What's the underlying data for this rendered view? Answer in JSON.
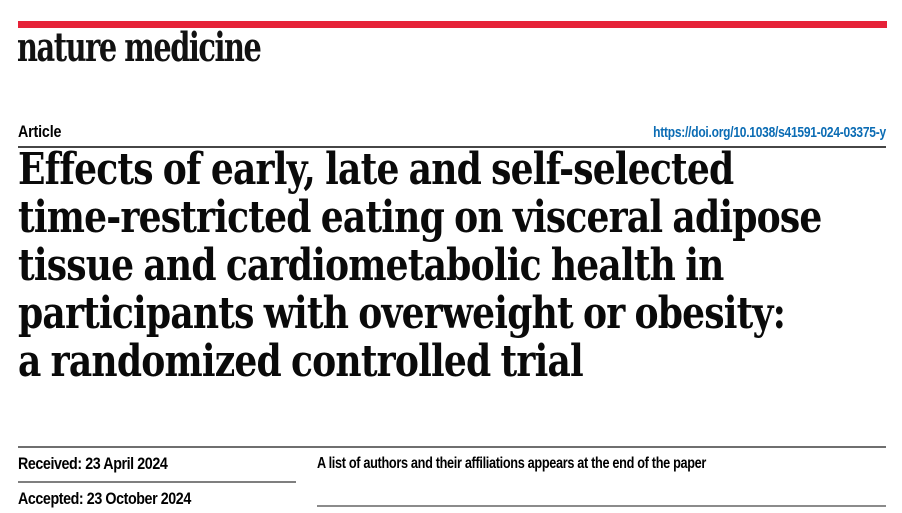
{
  "masthead": {
    "logo": "nature medicine"
  },
  "article_header": {
    "label": "Article",
    "doi": "https://doi.org/10.1038/s41591-024-03375-y"
  },
  "title": {
    "lines": [
      "Effects of early, late and self-selected",
      "time-restricted eating on visceral adipose",
      "tissue and cardiometabolic health in",
      "participants with overweight or obesity:",
      "a randomized controlled trial"
    ]
  },
  "info": {
    "received": "Received: 23 April 2024",
    "accepted": "Accepted: 23 October 2024",
    "authors_note": "A list of authors and their affiliations appears at the end of the paper"
  },
  "colors": {
    "brand_red": "#e62238",
    "link_blue": "#0b6cb4"
  }
}
